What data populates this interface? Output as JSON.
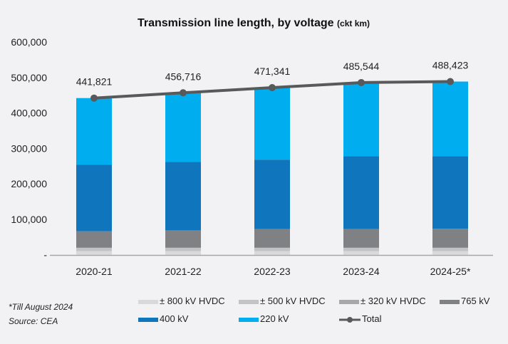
{
  "chart_data": {
    "type": "bar",
    "stacked": true,
    "title": "Transmission line length, by voltage",
    "title_unit": "(ckt km)",
    "categories": [
      "2020-21",
      "2021-22",
      "2022-23",
      "2023-24",
      "2024-25*"
    ],
    "ylim": [
      0,
      600000
    ],
    "yticks": [
      0,
      100000,
      200000,
      300000,
      400000,
      500000,
      600000
    ],
    "ytick_labels": [
      "-",
      "100,000",
      "200,000",
      "300,000",
      "400,000",
      "500,000",
      "600,000"
    ],
    "grid": false,
    "legend_position": "bottom",
    "series": [
      {
        "name": "± 800 kV HVDC",
        "color": "#d9d9db",
        "values": [
          9700,
          9700,
          9700,
          9700,
          9700
        ]
      },
      {
        "name": "± 500 kV HVDC",
        "color": "#c3c3c6",
        "values": [
          9400,
          9400,
          9400,
          9400,
          9400
        ]
      },
      {
        "name": "± 320 kV HVDC",
        "color": "#a8a8aa",
        "values": [
          300,
          300,
          300,
          300,
          300
        ]
      },
      {
        "name": "765 kV",
        "color": "#808185",
        "values": [
          46600,
          49100,
          52600,
          53100,
          53600
        ]
      },
      {
        "name": "400 kV",
        "color": "#0f75bc",
        "values": [
          188000,
          193500,
          196000,
          205500,
          205000
        ]
      },
      {
        "name": "220 kV",
        "color": "#00aeef",
        "values": [
          187821,
          194716,
          203341,
          207544,
          210423
        ]
      }
    ],
    "line": {
      "name": "Total",
      "color": "#58595b",
      "values": [
        441821,
        456716,
        471341,
        485544,
        488423
      ],
      "labels": [
        "441,821",
        "456,716",
        "471,341",
        "485,544",
        "488,423"
      ]
    }
  },
  "notes": {
    "footnote": "*Till August 2024",
    "source": "Source: CEA"
  }
}
